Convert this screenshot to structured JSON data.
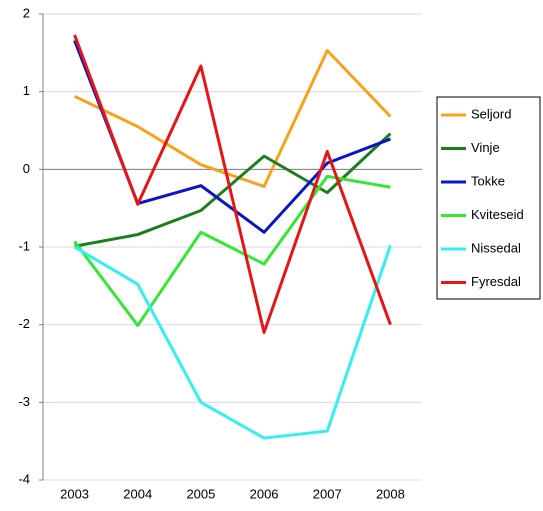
{
  "chart_data": {
    "type": "line",
    "categories": [
      "2003",
      "2004",
      "2005",
      "2006",
      "2007",
      "2008"
    ],
    "series": [
      {
        "name": "Seljord",
        "color": "#f7a21b",
        "values": [
          0.94,
          0.55,
          0.06,
          -0.22,
          1.53,
          0.68
        ]
      },
      {
        "name": "Vinje",
        "color": "#1c7f1c",
        "values": [
          -0.99,
          -0.84,
          -0.53,
          0.17,
          -0.3,
          0.46
        ]
      },
      {
        "name": "Tokke",
        "color": "#0a14c8",
        "values": [
          1.66,
          -0.44,
          -0.21,
          -0.81,
          0.08,
          0.39
        ]
      },
      {
        "name": "Kviteseid",
        "color": "#33e833",
        "values": [
          -0.93,
          -2.01,
          -0.81,
          -1.22,
          -0.09,
          -0.23
        ]
      },
      {
        "name": "Nissedal",
        "color": "#33f0f0",
        "values": [
          -1.0,
          -1.48,
          -3.0,
          -3.46,
          -3.37,
          -0.98
        ]
      },
      {
        "name": "Fyresdal",
        "color": "#e81414",
        "values": [
          1.73,
          -0.45,
          1.33,
          -2.1,
          0.23,
          -2.0
        ]
      }
    ],
    "ylim": [
      -4,
      2
    ],
    "yticks": [
      -4,
      -3,
      -2,
      -1,
      0,
      1,
      2
    ],
    "grid": true
  }
}
